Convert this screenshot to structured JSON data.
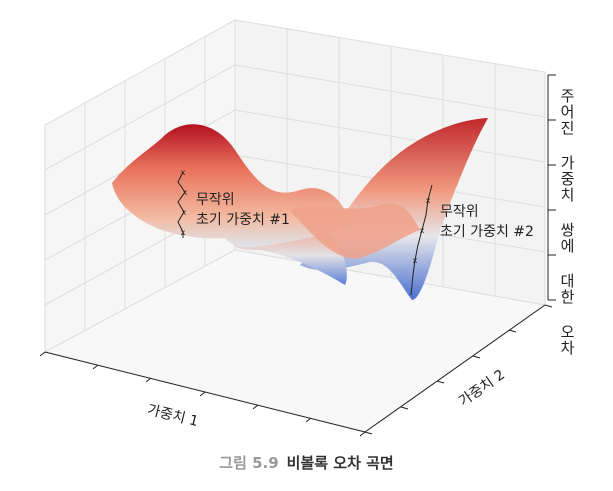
{
  "figure": {
    "annotations": [
      {
        "lines": [
          "무작위",
          "초기 가중치 #1"
        ]
      },
      {
        "lines": [
          "무작위",
          "초기 가중치 #2"
        ]
      }
    ],
    "x_label": "가중치 1",
    "y_label": "가중치 2",
    "z_label": "주어진 가중치 쌍에 대한 오차",
    "caption": {
      "number": "그림 5.9",
      "title": "비볼록 오차 곡면"
    }
  }
}
